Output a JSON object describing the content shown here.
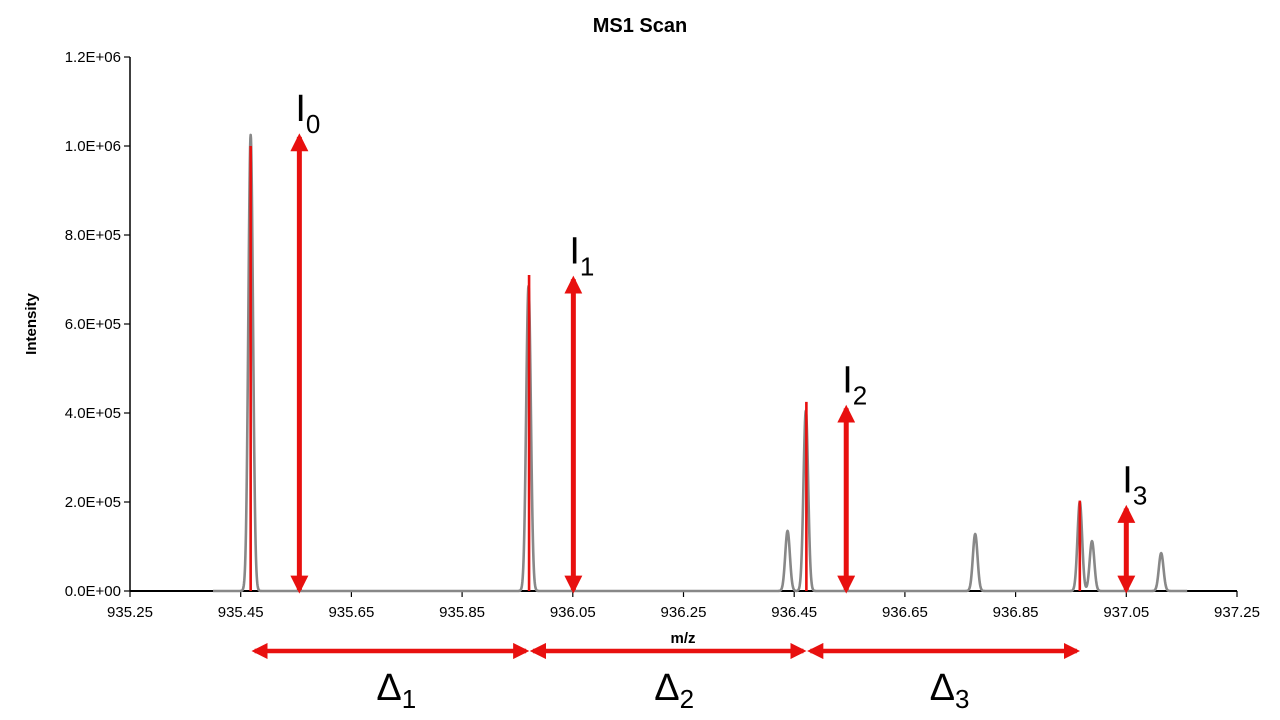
{
  "chart_data": {
    "type": "line",
    "title": "MS1 Scan",
    "xlabel": "m/z",
    "ylabel": "Intensity",
    "xlim": [
      935.25,
      937.25
    ],
    "ylim": [
      0,
      1200000
    ],
    "x_ticks": [
      "935.25",
      "935.45",
      "935.65",
      "935.85",
      "936.05",
      "936.25",
      "936.45",
      "936.65",
      "936.85",
      "937.05",
      "937.25"
    ],
    "y_ticks": [
      "0.0E+00",
      "2.0E+05",
      "4.0E+05",
      "6.0E+05",
      "8.0E+05",
      "1.0E+06",
      "1.2E+06"
    ],
    "grid": false,
    "colors": {
      "profile": "#888888",
      "centroid": "#e8100f",
      "annotation": "#e8100f"
    },
    "series": [
      {
        "style": "profile",
        "peaks": [
          {
            "mz": 935.468,
            "intensity": 1025000
          },
          {
            "mz": 935.97,
            "intensity": 685000
          },
          {
            "mz": 936.438,
            "intensity": 135000
          },
          {
            "mz": 936.471,
            "intensity": 405000
          },
          {
            "mz": 936.777,
            "intensity": 128000
          },
          {
            "mz": 936.966,
            "intensity": 200000
          },
          {
            "mz": 936.988,
            "intensity": 112000
          },
          {
            "mz": 937.113,
            "intensity": 85000
          }
        ]
      },
      {
        "style": "centroid",
        "peaks": [
          {
            "mz": 935.468,
            "intensity": 1000000
          },
          {
            "mz": 935.971,
            "intensity": 710000
          },
          {
            "mz": 936.472,
            "intensity": 425000
          },
          {
            "mz": 936.966,
            "intensity": 203000
          }
        ]
      }
    ],
    "intensity_arrows": [
      {
        "label": "I",
        "sub": "0",
        "mz": 935.556,
        "intensity": 1025000
      },
      {
        "label": "I",
        "sub": "1",
        "mz": 936.051,
        "intensity": 705000
      },
      {
        "label": "I",
        "sub": "2",
        "mz": 936.544,
        "intensity": 415000
      },
      {
        "label": "I",
        "sub": "3",
        "mz": 937.05,
        "intensity": 190000
      }
    ],
    "spacing_arrows": [
      {
        "label": "Δ",
        "sub": "1",
        "from": 935.468,
        "to": 935.971
      },
      {
        "label": "Δ",
        "sub": "2",
        "from": 935.971,
        "to": 936.472
      },
      {
        "label": "Δ",
        "sub": "3",
        "from": 936.472,
        "to": 936.966
      }
    ]
  }
}
